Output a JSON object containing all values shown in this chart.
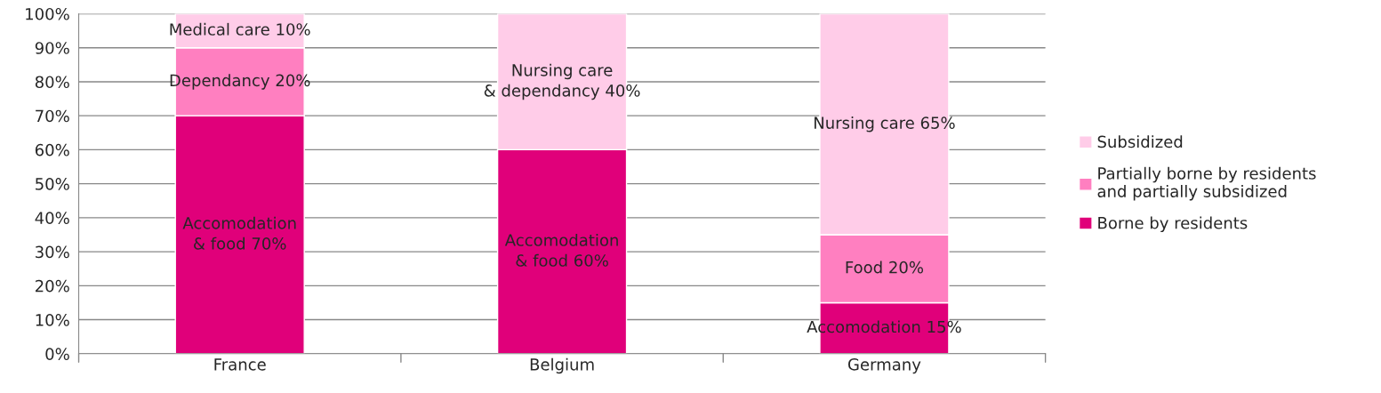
{
  "chart_data": {
    "type": "bar",
    "stacked": true,
    "categories": [
      "France",
      "Belgium",
      "Germany"
    ],
    "series": [
      {
        "name": "Borne by residents",
        "color": "#e0007a",
        "values": [
          70,
          60,
          15
        ],
        "value_labels": [
          "Accomodation\n& food 70%",
          "Accomodation\n& food 60%",
          "Accomodation 15%"
        ]
      },
      {
        "name": "Partially borne by residents\nand partially subsidized",
        "color": "#ff7fc0",
        "values": [
          20,
          0,
          20
        ],
        "value_labels": [
          "Dependancy 20%",
          null,
          "Food 20%"
        ]
      },
      {
        "name": "Subsidized",
        "color": "#ffcce8",
        "values": [
          10,
          40,
          65
        ],
        "value_labels": [
          "Medical care 10%",
          "Nursing care\n& dependancy 40%",
          "Nursing care 65%"
        ]
      }
    ],
    "ylim": [
      0,
      100
    ],
    "yticks": [
      {
        "value": 0,
        "label": "0%"
      },
      {
        "value": 10,
        "label": "10%"
      },
      {
        "value": 20,
        "label": "20%"
      },
      {
        "value": 30,
        "label": "30%"
      },
      {
        "value": 40,
        "label": "40%"
      },
      {
        "value": 50,
        "label": "50%"
      },
      {
        "value": 60,
        "label": "60%"
      },
      {
        "value": 70,
        "label": "70%"
      },
      {
        "value": 80,
        "label": "80%"
      },
      {
        "value": 90,
        "label": "90%"
      },
      {
        "value": 100,
        "label": "100%"
      }
    ],
    "grid": "y",
    "legend": "right"
  }
}
